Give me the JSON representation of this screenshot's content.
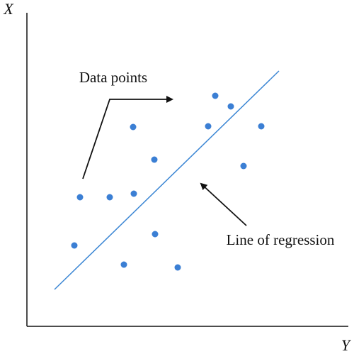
{
  "axes": {
    "vertical_label": "X",
    "horizontal_label": "Y"
  },
  "annotations": {
    "points_label": "Data points",
    "line_label": "Line of regression"
  }
}
